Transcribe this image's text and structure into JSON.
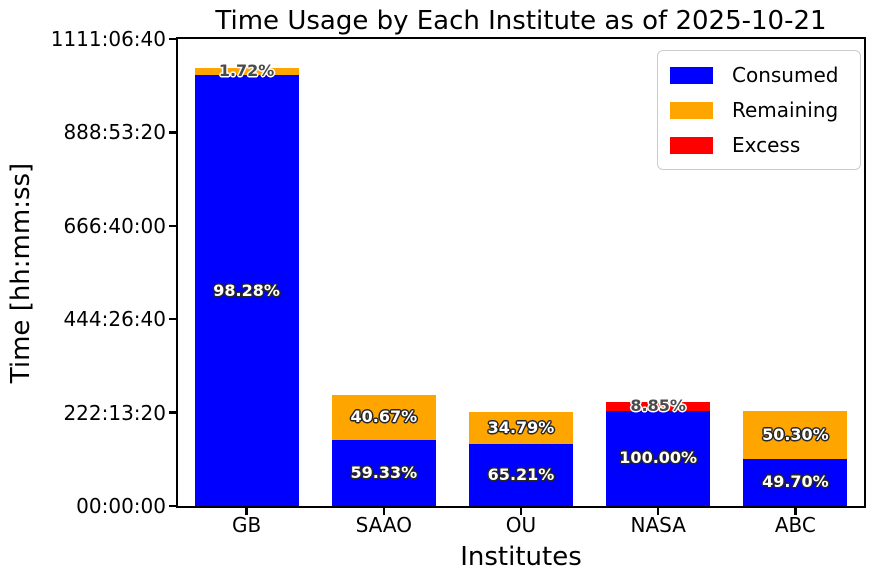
{
  "chart_data": {
    "type": "stacked_bar",
    "title": "Time Usage by Each Institute as of 2025-10-21",
    "xlabel": "Institutes",
    "ylabel": "Time [hh:mm:ss]",
    "categories": [
      "GB",
      "SAAO",
      "OU",
      "NASA",
      "ABC"
    ],
    "y_axis": {
      "tick_labels": [
        "00:00:00",
        "222:13:20",
        "444:26:40",
        "666:40:00",
        "888:53:20",
        "1111:06:40"
      ],
      "tick_seconds": [
        0,
        800000,
        1600000,
        2400000,
        3200000,
        4000000
      ],
      "max_seconds": 4000000,
      "grid": false
    },
    "colors": {
      "consumed": "#0000ff",
      "remaining": "#ffa500",
      "excess": "#ff0000"
    },
    "legend": {
      "position": "upper right",
      "entries": [
        {
          "label": "Consumed",
          "color": "#0000ff"
        },
        {
          "label": "Remaining",
          "color": "#ffa500"
        },
        {
          "label": "Excess",
          "color": "#ff0000"
        }
      ]
    },
    "bars": [
      {
        "category": "GB",
        "segments": [
          {
            "series": "Consumed",
            "color": "#0000ff",
            "seconds": 3690000,
            "label": "98.28%",
            "label_tone": "light"
          },
          {
            "series": "Remaining",
            "color": "#ffa500",
            "seconds": 64600,
            "label": "1.72%",
            "label_tone": "dark"
          }
        ]
      },
      {
        "category": "SAAO",
        "segments": [
          {
            "series": "Consumed",
            "color": "#0000ff",
            "seconds": 566000,
            "label": "59.33%",
            "label_tone": "light"
          },
          {
            "series": "Remaining",
            "color": "#ffa500",
            "seconds": 388000,
            "label": "40.67%",
            "label_tone": "light"
          }
        ]
      },
      {
        "category": "OU",
        "segments": [
          {
            "series": "Consumed",
            "color": "#0000ff",
            "seconds": 527000,
            "label": "65.21%",
            "label_tone": "light"
          },
          {
            "series": "Remaining",
            "color": "#ffa500",
            "seconds": 281000,
            "label": "34.79%",
            "label_tone": "light"
          }
        ]
      },
      {
        "category": "NASA",
        "segments": [
          {
            "series": "Consumed",
            "color": "#0000ff",
            "seconds": 817000,
            "label": "100.00%",
            "label_tone": "light"
          },
          {
            "series": "Excess",
            "color": "#ff0000",
            "seconds": 72300,
            "label": "8.85%",
            "label_tone": "dark"
          }
        ]
      },
      {
        "category": "ABC",
        "segments": [
          {
            "series": "Consumed",
            "color": "#0000ff",
            "seconds": 406000,
            "label": "49.70%",
            "label_tone": "light"
          },
          {
            "series": "Remaining",
            "color": "#ffa500",
            "seconds": 411000,
            "label": "50.30%",
            "label_tone": "light"
          }
        ]
      }
    ]
  }
}
